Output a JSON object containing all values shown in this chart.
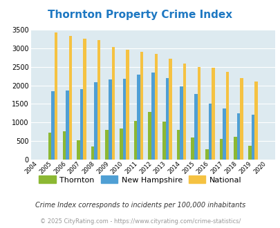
{
  "title": "Thornton Property Crime Index",
  "years": [
    2004,
    2005,
    2006,
    2007,
    2008,
    2009,
    2010,
    2011,
    2012,
    2013,
    2014,
    2015,
    2016,
    2017,
    2018,
    2019,
    2020
  ],
  "thornton": [
    0,
    730,
    760,
    520,
    350,
    800,
    840,
    1050,
    1280,
    1030,
    800,
    590,
    280,
    560,
    610,
    370,
    0
  ],
  "new_hampshire": [
    0,
    1850,
    1870,
    1890,
    2090,
    2160,
    2180,
    2290,
    2340,
    2190,
    1970,
    1760,
    1500,
    1370,
    1240,
    1210,
    0
  ],
  "national": [
    0,
    3420,
    3330,
    3260,
    3210,
    3040,
    2950,
    2900,
    2850,
    2720,
    2590,
    2490,
    2470,
    2370,
    2200,
    2110,
    0
  ],
  "thornton_color": "#8cb833",
  "nh_color": "#4f9fd4",
  "national_color": "#f5c242",
  "bg_color": "#ddeaf0",
  "title_color": "#1e78c2",
  "ylabel_max": 3500,
  "yticks": [
    0,
    500,
    1000,
    1500,
    2000,
    2500,
    3000,
    3500
  ],
  "subtitle": "Crime Index corresponds to incidents per 100,000 inhabitants",
  "footer": "© 2025 CityRating.com - https://www.cityrating.com/crime-statistics/",
  "legend_labels": [
    "Thornton",
    "New Hampshire",
    "National"
  ]
}
